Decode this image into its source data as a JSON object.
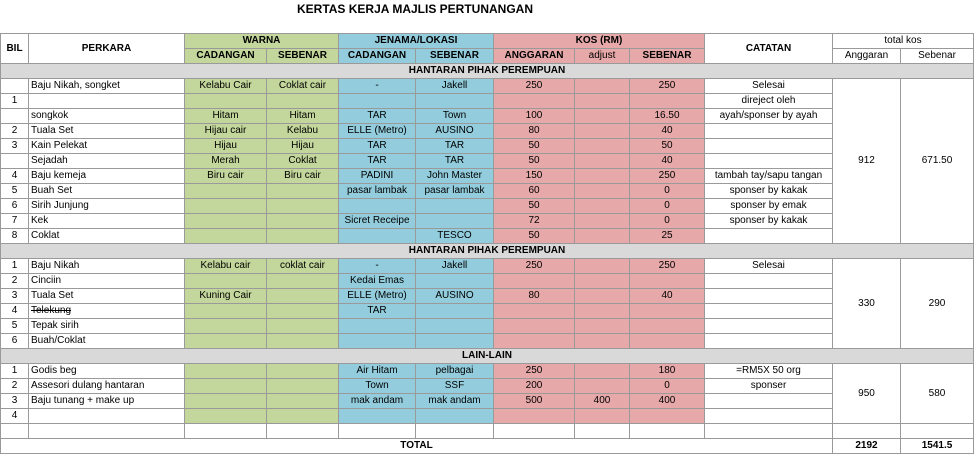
{
  "title": "KERTAS KERJA MAJLIS PERTUNANGAN",
  "headers": {
    "bil": "BIL",
    "perkara": "PERKARA",
    "warna": "WARNA",
    "jenama": "JENAMA/LOKASI",
    "kos": "KOS (RM)",
    "catatan": "CATATAN",
    "total_kos": "total kos",
    "cadangan": "CADANGAN",
    "sebenar": "SEBENAR",
    "anggaran": "ANGGARAN",
    "adjust": "adjust",
    "anggaran_title": "Anggaran",
    "sebenar_title": "Sebenar"
  },
  "sections": [
    {
      "title": "HANTARAN PIHAK PEREMPUAN",
      "total_anggaran": "912",
      "total_sebenar": "671.50",
      "rows": [
        {
          "bil": "",
          "item": "Baju Nikah, songket",
          "warna_cad": "Kelabu Cair",
          "warna_seb": "Coklat cair",
          "jen_cad": "-",
          "jen_seb": "Jakell",
          "anggaran": "250",
          "adjust": "",
          "sebenar": "250",
          "catatan": "Selesai",
          "cat_align": "c"
        },
        {
          "bil": "1",
          "item": "",
          "warna_cad": "",
          "warna_seb": "",
          "jen_cad": "",
          "jen_seb": "",
          "anggaran": "",
          "adjust": "",
          "sebenar": "",
          "catatan": "direject oleh",
          "cat_align": "c"
        },
        {
          "bil": "",
          "item": "songkok",
          "warna_cad": "Hitam",
          "warna_seb": "Hitam",
          "jen_cad": "TAR",
          "jen_seb": "Town",
          "anggaran": "100",
          "adjust": "",
          "sebenar": "16.50",
          "catatan": "ayah/sponser by ayah",
          "cat_align": "c"
        },
        {
          "bil": "2",
          "item": "Tuala Set",
          "warna_cad": "Hijau cair",
          "warna_seb": "Kelabu",
          "jen_cad": "ELLE (Metro)",
          "jen_seb": "AUSINO",
          "anggaran": "80",
          "adjust": "",
          "sebenar": "40",
          "catatan": "",
          "cat_align": "c"
        },
        {
          "bil": "3",
          "item": "Kain Pelekat",
          "warna_cad": "Hijau",
          "warna_seb": "Hijau",
          "jen_cad": "TAR",
          "jen_seb": "TAR",
          "anggaran": "50",
          "adjust": "",
          "sebenar": "50",
          "catatan": "",
          "cat_align": "c"
        },
        {
          "bil": "",
          "item": "Sejadah",
          "warna_cad": "Merah",
          "warna_seb": "Coklat",
          "jen_cad": "TAR",
          "jen_seb": "TAR",
          "anggaran": "50",
          "adjust": "",
          "sebenar": "40",
          "catatan": "",
          "cat_align": "c"
        },
        {
          "bil": "4",
          "item": "Baju kemeja",
          "warna_cad": "Biru cair",
          "warna_seb": "Biru cair",
          "jen_cad": "PADINI",
          "jen_seb": "John Master",
          "anggaran": "150",
          "adjust": "",
          "sebenar": "250",
          "catatan": "tambah tay/sapu tangan",
          "cat_align": "c"
        },
        {
          "bil": "5",
          "item": "Buah Set",
          "warna_cad": "",
          "warna_seb": "",
          "jen_cad": "pasar lambak",
          "jen_seb": "pasar lambak",
          "anggaran": "60",
          "adjust": "",
          "sebenar": "0",
          "catatan": "sponser by kakak",
          "cat_align": "c"
        },
        {
          "bil": "6",
          "item": "Sirih Junjung",
          "warna_cad": "",
          "warna_seb": "",
          "jen_cad": "",
          "jen_seb": "",
          "anggaran": "50",
          "adjust": "",
          "sebenar": "0",
          "catatan": "sponser by emak",
          "cat_align": "c"
        },
        {
          "bil": "7",
          "item": "Kek",
          "warna_cad": "",
          "warna_seb": "",
          "jen_cad": "Sicret Receipe",
          "jen_seb": "",
          "anggaran": "72",
          "adjust": "",
          "sebenar": "0",
          "catatan": "sponser by kakak",
          "cat_align": "c"
        },
        {
          "bil": "8",
          "item": "Coklat",
          "warna_cad": "",
          "warna_seb": "",
          "jen_cad": "",
          "jen_seb": "TESCO",
          "anggaran": "50",
          "adjust": "",
          "sebenar": "25",
          "catatan": "",
          "cat_align": "c"
        }
      ]
    },
    {
      "title": "HANTARAN PIHAK PEREMPUAN",
      "total_anggaran": "330",
      "total_sebenar": "290",
      "rows": [
        {
          "bil": "1",
          "item": "Baju Nikah",
          "warna_cad": "Kelabu cair",
          "warna_seb": "coklat cair",
          "jen_cad": "-",
          "jen_seb": "Jakell",
          "anggaran": "250",
          "adjust": "",
          "sebenar": "250",
          "catatan": "Selesai",
          "cat_align": "c"
        },
        {
          "bil": "2",
          "item": "Cinciin",
          "warna_cad": "",
          "warna_seb": "",
          "jen_cad": "Kedai Emas",
          "jen_seb": "",
          "anggaran": "",
          "adjust": "",
          "sebenar": "",
          "catatan": "",
          "cat_align": "c"
        },
        {
          "bil": "3",
          "item": "Tuala Set",
          "warna_cad": "Kuning Cair",
          "warna_seb": "",
          "jen_cad": "ELLE (Metro)",
          "jen_seb": "AUSINO",
          "anggaran": "80",
          "adjust": "",
          "sebenar": "40",
          "catatan": "",
          "cat_align": "c"
        },
        {
          "bil": "4",
          "item": "Telekung",
          "strike": true,
          "warna_cad": "",
          "warna_seb": "",
          "jen_cad": "TAR",
          "jen_seb": "",
          "anggaran": "",
          "adjust": "",
          "sebenar": "",
          "catatan": "",
          "cat_align": "c"
        },
        {
          "bil": "5",
          "item": "Tepak sirih",
          "warna_cad": "",
          "warna_seb": "",
          "jen_cad": "",
          "jen_seb": "",
          "anggaran": "",
          "adjust": "",
          "sebenar": "",
          "catatan": "",
          "cat_align": "c"
        },
        {
          "bil": "6",
          "item": "Buah/Coklat",
          "warna_cad": "",
          "warna_seb": "",
          "jen_cad": "",
          "jen_seb": "",
          "anggaran": "",
          "adjust": "",
          "sebenar": "",
          "catatan": "",
          "cat_align": "c"
        }
      ]
    },
    {
      "title": "LAIN-LAIN",
      "total_anggaran": "950",
      "total_sebenar": "580",
      "rows": [
        {
          "bil": "1",
          "item": "Godis beg",
          "warna_cad": "",
          "warna_seb": "",
          "jen_cad": "Air Hitam",
          "jen_seb": "pelbagai",
          "anggaran": "250",
          "adjust": "",
          "sebenar": "180",
          "catatan": "=RM5X 50 org",
          "cat_align": "c"
        },
        {
          "bil": "2",
          "item": "Assesori dulang hantaran",
          "warna_cad": "",
          "warna_seb": "",
          "jen_cad": "Town",
          "jen_seb": "SSF",
          "anggaran": "200",
          "adjust": "",
          "sebenar": "0",
          "catatan": "sponser",
          "cat_align": "c"
        },
        {
          "bil": "3",
          "item": "Baju tunang + make up",
          "warna_cad": "",
          "warna_seb": "",
          "jen_cad": "mak andam",
          "jen_seb": "mak andam",
          "anggaran": "500",
          "adjust": "400",
          "sebenar": "400",
          "catatan": "",
          "cat_align": "c"
        },
        {
          "bil": "4",
          "item": "",
          "warna_cad": "",
          "warna_seb": "",
          "jen_cad": "",
          "jen_seb": "",
          "anggaran": "",
          "adjust": "",
          "sebenar": "",
          "catatan": "",
          "cat_align": "c"
        }
      ]
    }
  ],
  "total": {
    "label": "TOTAL",
    "anggaran": "2192",
    "sebenar": "1541.5"
  }
}
